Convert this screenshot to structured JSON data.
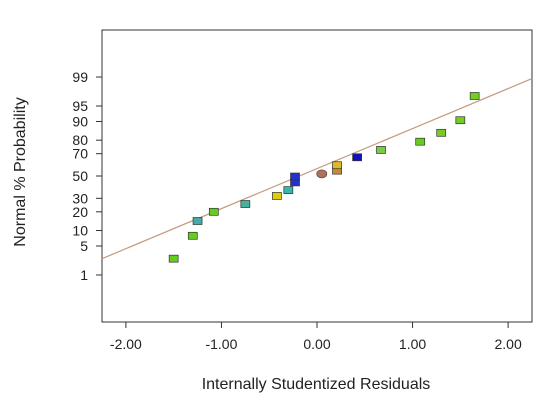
{
  "chart_data": {
    "type": "scatter",
    "title": "",
    "xlabel": "Internally Studentized Residuals",
    "ylabel": "Normal % Probability",
    "xlim": [
      -2.25,
      2.25
    ],
    "x_ticks": [
      -2.0,
      -1.0,
      0.0,
      1.0,
      2.0
    ],
    "x_tick_labels": [
      "-2.00",
      "-1.00",
      "0.00",
      "1.00",
      "2.00"
    ],
    "y_scale": "normal-probability",
    "ylim": [
      0.03,
      99.97
    ],
    "y_ticks": [
      1,
      5,
      10,
      20,
      30,
      50,
      70,
      80,
      90,
      95,
      99
    ],
    "y_tick_labels": [
      "1",
      "5",
      "10",
      "20",
      "30",
      "50",
      "70",
      "80",
      "90",
      "95",
      "99"
    ],
    "grid": false,
    "fit_line": {
      "x": [
        -2.25,
        2.25
      ],
      "y": [
        2.6,
        98.9
      ],
      "color": "#c29a7e"
    },
    "colors": {
      "green": "#77cc22",
      "teal": "#44b39d",
      "blue": "#2222cc",
      "yellow": "#ddbb11",
      "orange": "#d98a20",
      "brown": "#b07060"
    },
    "points": [
      {
        "x": -1.5,
        "y": 2.6,
        "shape": "square",
        "color": "#66cc22"
      },
      {
        "x": -1.3,
        "y": 8,
        "shape": "square",
        "color": "#66cc22"
      },
      {
        "x": -1.25,
        "y": 14.5,
        "shape": "square",
        "color": "#44aaaa"
      },
      {
        "x": -1.08,
        "y": 20,
        "shape": "square",
        "color": "#66cc22"
      },
      {
        "x": -0.75,
        "y": 25.5,
        "shape": "square",
        "color": "#44b39d"
      },
      {
        "x": -0.42,
        "y": 32,
        "shape": "square",
        "color": "#ddcc11"
      },
      {
        "x": -0.3,
        "y": 37,
        "shape": "square",
        "color": "#33bbaa"
      },
      {
        "x": -0.23,
        "y": 44,
        "shape": "square",
        "color": "#2233cc"
      },
      {
        "x": -0.23,
        "y": 49.5,
        "shape": "square",
        "color": "#2233cc"
      },
      {
        "x": 0.05,
        "y": 52,
        "shape": "circle",
        "color": "#b07060"
      },
      {
        "x": 0.21,
        "y": 55,
        "shape": "square",
        "color": "#cc8833"
      },
      {
        "x": 0.21,
        "y": 60,
        "shape": "square",
        "color": "#ddbb22"
      },
      {
        "x": 0.42,
        "y": 67,
        "shape": "square",
        "color": "#1111bb"
      },
      {
        "x": 0.67,
        "y": 73,
        "shape": "square",
        "color": "#77cc44"
      },
      {
        "x": 1.08,
        "y": 79,
        "shape": "square",
        "color": "#66cc22"
      },
      {
        "x": 1.3,
        "y": 84.5,
        "shape": "square",
        "color": "#77cc22"
      },
      {
        "x": 1.5,
        "y": 90.5,
        "shape": "square",
        "color": "#77cc22"
      },
      {
        "x": 1.65,
        "y": 97,
        "shape": "square",
        "color": "#77cc22"
      }
    ]
  }
}
